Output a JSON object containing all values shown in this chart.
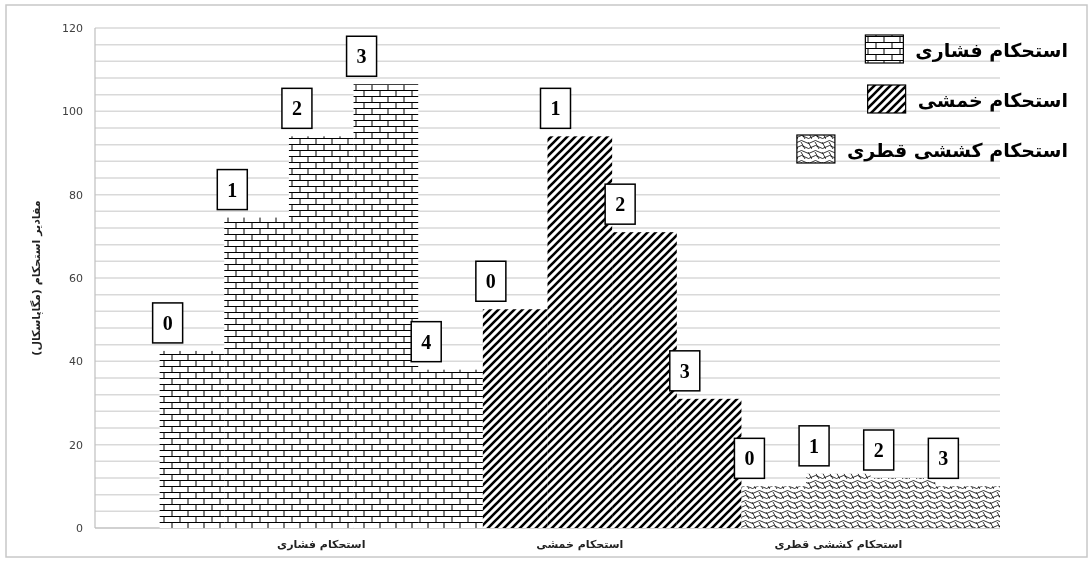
{
  "chart_data": {
    "type": "bar",
    "stacked": true,
    "ylabel": "مقادیر استحکام (مگاپاسکال)",
    "categories": [
      null,
      null,
      null,
      "استحکام فشاری",
      null,
      null,
      null,
      "استحکام خمشی",
      null,
      null,
      null,
      "استحکام کششی قطری",
      null,
      null
    ],
    "series": [
      {
        "name": "استحکام فشاری",
        "color": "#000000",
        "values": [
          null,
          42.5,
          74.5,
          94,
          106.5,
          38,
          null,
          null,
          null,
          null,
          null,
          null,
          null,
          null
        ]
      },
      {
        "name": "استحکام خمشی",
        "color": "#000000",
        "values": [
          null,
          null,
          null,
          null,
          null,
          null,
          52.5,
          94,
          71,
          31,
          null,
          null,
          null,
          null
        ]
      },
      {
        "name": "استحکام کششی قطری",
        "color": "#000000",
        "values": [
          null,
          null,
          null,
          null,
          null,
          null,
          null,
          null,
          null,
          null,
          10,
          13,
          12,
          10
        ]
      }
    ],
    "annotations": [
      "0",
      "1",
      "2",
      "3",
      "4",
      "0",
      "1",
      "2",
      "3",
      "0",
      "1",
      "2",
      "3"
    ],
    "ylim": [
      0,
      120
    ],
    "yticks": [
      0,
      20,
      40,
      60,
      80,
      100,
      120
    ],
    "grid": "y",
    "legend": "top right"
  }
}
